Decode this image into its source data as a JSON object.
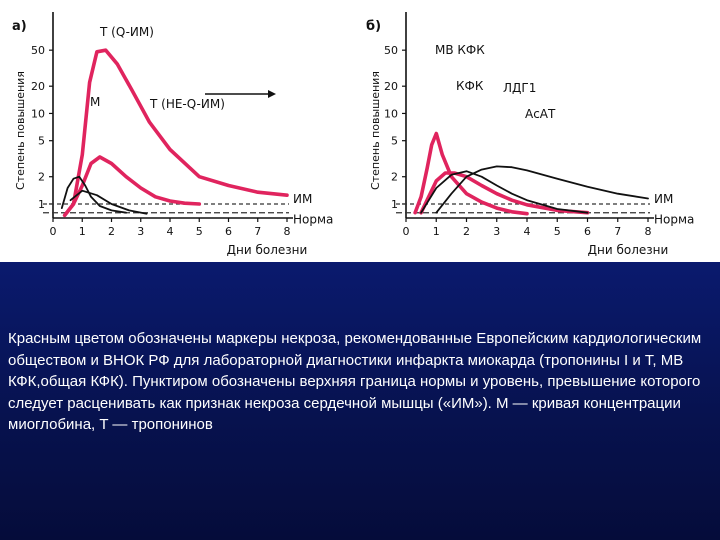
{
  "caption": "Красным цветом обозначены маркеры некроза, рекомендованные Европейским кардиологическим обществом и ВНОК РФ для лабораторной диагностики инфаркта миокарда (тропонины I и T, МВ КФК,общая КФК). Пунктиром обозначены верхняя граница нормы и уровень, превышение которого следует расценивать как признак некроза сердечной мышцы («ИМ»). М — кривая концентрации миоглобина, T — тропонинов",
  "colors": {
    "marker_red": "#e0245e",
    "curve_black": "#111111",
    "panel_blue": "#07124f"
  },
  "chart_data": [
    {
      "type": "line",
      "panel_label": "а)",
      "ylabel": "Степень повышения",
      "xlabel": "Дни болезни",
      "y_ticks": [
        "1",
        "2",
        "5",
        "10",
        "20",
        "50"
      ],
      "x_ticks": [
        "0",
        "1",
        "2",
        "3",
        "4",
        "5",
        "6",
        "7",
        "8"
      ],
      "xlim": [
        0,
        8
      ],
      "y_scale": "log",
      "ylim": [
        0.7,
        60
      ],
      "reference_lines": [
        {
          "label": "ИМ",
          "y": 1
        },
        {
          "label": "Норма",
          "y": 0.8
        }
      ],
      "series": [
        {
          "name": "T (Q-ИМ)",
          "color": "#e0245e",
          "x": [
            0.4,
            0.7,
            1.0,
            1.25,
            1.5,
            1.8,
            2.2,
            2.7,
            3.3,
            4.0,
            5.0,
            6.0,
            7.0,
            8.0
          ],
          "y": [
            0.75,
            1.0,
            3.5,
            22,
            48,
            50,
            35,
            18,
            8,
            4,
            2,
            1.6,
            1.35,
            1.25
          ]
        },
        {
          "name": "T (НЕ-Q-ИМ)",
          "color": "#e0245e",
          "x": [
            0.4,
            0.7,
            1.0,
            1.3,
            1.6,
            2.0,
            2.5,
            3.0,
            3.5,
            4.0,
            4.5,
            5.0
          ],
          "y": [
            0.75,
            1.0,
            1.6,
            2.8,
            3.3,
            2.8,
            2.0,
            1.5,
            1.2,
            1.08,
            1.02,
            1.0
          ]
        },
        {
          "name": "М",
          "color": "#111111",
          "x": [
            0.3,
            0.5,
            0.7,
            0.9,
            1.1,
            1.3,
            1.6,
            2.0,
            2.5
          ],
          "y": [
            0.9,
            1.5,
            1.9,
            2.0,
            1.6,
            1.2,
            0.95,
            0.85,
            0.8
          ]
        },
        {
          "name": "",
          "color": "#111111",
          "x": [
            0.6,
            1.0,
            1.5,
            2.0,
            2.6,
            3.2
          ],
          "y": [
            1.1,
            1.4,
            1.25,
            1.0,
            0.85,
            0.78
          ]
        }
      ]
    },
    {
      "type": "line",
      "panel_label": "б)",
      "ylabel": "Степень повышения",
      "xlabel": "Дни болезни",
      "y_ticks": [
        "1",
        "2",
        "5",
        "10",
        "20",
        "50"
      ],
      "x_ticks": [
        "0",
        "1",
        "2",
        "3",
        "4",
        "5",
        "6",
        "7",
        "8"
      ],
      "xlim": [
        0,
        8
      ],
      "y_scale": "log",
      "ylim": [
        0.7,
        60
      ],
      "reference_lines": [
        {
          "label": "ИМ",
          "y": 1
        },
        {
          "label": "Норма",
          "y": 0.8
        }
      ],
      "series": [
        {
          "name": "МВ КФК",
          "color": "#e0245e",
          "x": [
            0.3,
            0.5,
            0.7,
            0.85,
            1.0,
            1.2,
            1.5,
            2.0,
            2.5,
            3.0,
            3.5,
            4.0
          ],
          "y": [
            0.8,
            1.2,
            2.5,
            4.5,
            6.0,
            3.5,
            2.0,
            1.3,
            1.05,
            0.9,
            0.82,
            0.78
          ]
        },
        {
          "name": "КФК",
          "color": "#e0245e",
          "x": [
            0.5,
            0.8,
            1.0,
            1.3,
            1.6,
            2.0,
            2.5,
            3.0,
            3.5,
            4.0,
            5.0,
            6.0
          ],
          "y": [
            0.8,
            1.3,
            1.8,
            2.2,
            2.2,
            2.0,
            1.6,
            1.3,
            1.1,
            0.98,
            0.85,
            0.8
          ]
        },
        {
          "name": "ЛДГ1",
          "color": "#111111",
          "x": [
            1.0,
            1.5,
            2.0,
            2.5,
            3.0,
            3.5,
            4.0,
            5.0,
            6.0,
            7.0,
            8.0
          ],
          "y": [
            0.8,
            1.3,
            2.0,
            2.4,
            2.6,
            2.55,
            2.35,
            1.9,
            1.55,
            1.3,
            1.15
          ]
        },
        {
          "name": "АсАТ",
          "color": "#111111",
          "x": [
            0.5,
            1.0,
            1.5,
            2.0,
            2.5,
            3.0,
            3.5,
            4.0,
            5.0,
            6.0
          ],
          "y": [
            0.8,
            1.5,
            2.1,
            2.3,
            2.0,
            1.6,
            1.3,
            1.1,
            0.88,
            0.8
          ]
        }
      ]
    }
  ]
}
